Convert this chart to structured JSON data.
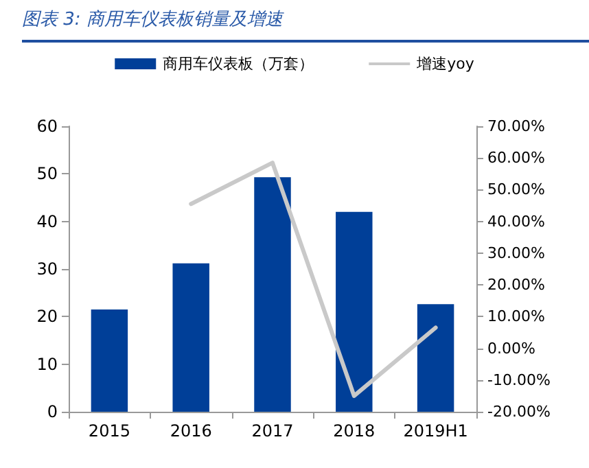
{
  "chart_data": {
    "type": "bar",
    "title": "图表 3:  商用车仪表板销量及增速",
    "categories": [
      "2015",
      "2016",
      "2017",
      "2018",
      "2019H1"
    ],
    "series": [
      {
        "name": "商用车仪表板（万套）",
        "color": "#003f98",
        "values": [
          21.5,
          31.2,
          49.3,
          42.0,
          22.6
        ]
      },
      {
        "name": "增速yoy",
        "type": "line",
        "axis": "y2",
        "color": "#c9c9c9",
        "values": [
          null,
          45.5,
          58.5,
          -15.0,
          6.5
        ]
      }
    ],
    "ylim": [
      0,
      60
    ],
    "yticks": [
      0,
      10,
      20,
      30,
      40,
      50,
      60
    ],
    "y2lim": [
      -20,
      70
    ],
    "y2ticks": [
      {
        "value": -20,
        "label": "-20.00%"
      },
      {
        "value": -10,
        "label": "-10.00%"
      },
      {
        "value": 0,
        "label": "0.00%"
      },
      {
        "value": 10,
        "label": "10.00%"
      },
      {
        "value": 20,
        "label": "20.00%"
      },
      {
        "value": 30,
        "label": "30.00%"
      },
      {
        "value": 40,
        "label": "40.00%"
      },
      {
        "value": 50,
        "label": "50.00%"
      },
      {
        "value": 60,
        "label": "60.00%"
      },
      {
        "value": 70,
        "label": "70.00%"
      }
    ],
    "grid": false,
    "legend": "top",
    "marker": "none"
  }
}
